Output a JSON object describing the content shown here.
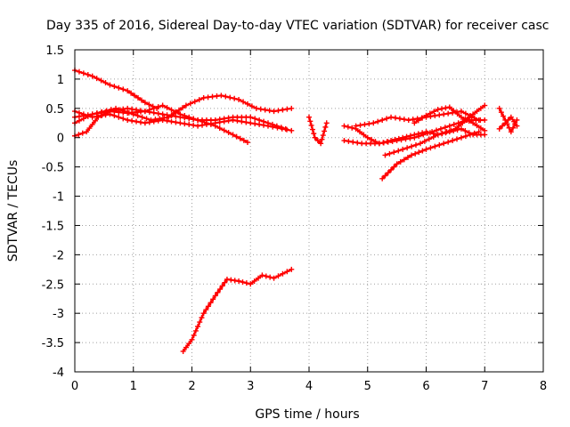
{
  "chart_data": {
    "type": "scatter",
    "title": "Day 335 of 2016, Sidereal Day-to-day VTEC variation (SDTVAR) for receiver casc",
    "xlabel": "GPS time / hours",
    "ylabel": "SDTVAR / TECUs",
    "xlim": [
      0,
      8
    ],
    "ylim": [
      -4,
      1.5
    ],
    "x_ticks": [
      0,
      1,
      2,
      3,
      4,
      5,
      6,
      7,
      8
    ],
    "x_tick_labels": [
      "0",
      "1",
      "2",
      "3",
      "4",
      "5",
      "6",
      "7",
      "8"
    ],
    "y_ticks": [
      1.5,
      1,
      0.5,
      0,
      -0.5,
      -1,
      -1.5,
      -2,
      -2.5,
      -3,
      -3.5,
      -4
    ],
    "y_tick_labels": [
      "1.5",
      "1",
      "0.5",
      "0",
      "-0.5",
      "-1",
      "-1.5",
      "-2",
      "-2.5",
      "-3",
      "-3.5",
      "-4"
    ],
    "grid": true,
    "marker_color": "#ff0000",
    "series": [
      {
        "name": "s1",
        "x": [
          0,
          0.3,
          0.6,
          0.9,
          1.2,
          1.4
        ],
        "y": [
          1.15,
          1.05,
          0.9,
          0.8,
          0.6,
          0.5
        ]
      },
      {
        "name": "s2",
        "x": [
          0,
          0.3,
          0.6,
          0.9,
          1.2,
          1.5,
          1.8,
          2.1,
          2.4,
          2.7,
          3.0,
          3.3,
          3.7
        ],
        "y": [
          0.45,
          0.35,
          0.4,
          0.3,
          0.25,
          0.3,
          0.25,
          0.2,
          0.25,
          0.3,
          0.25,
          0.2,
          0.12
        ]
      },
      {
        "name": "s3",
        "x": [
          0,
          0.3,
          0.7,
          1.0,
          1.3,
          1.6,
          1.9,
          2.2,
          2.5,
          2.8,
          3.1,
          3.4,
          3.7
        ],
        "y": [
          0.25,
          0.4,
          0.5,
          0.4,
          0.3,
          0.35,
          0.55,
          0.68,
          0.72,
          0.65,
          0.5,
          0.45,
          0.5
        ]
      },
      {
        "name": "s4",
        "x": [
          0,
          0.2,
          0.4,
          0.6,
          0.9,
          1.2,
          1.5,
          1.8,
          2.1,
          2.4,
          2.7,
          2.95
        ],
        "y": [
          0.03,
          0.1,
          0.35,
          0.45,
          0.5,
          0.45,
          0.4,
          0.35,
          0.3,
          0.2,
          0.05,
          -0.08
        ]
      },
      {
        "name": "s5",
        "x": [
          0,
          0.3,
          0.6,
          0.9,
          1.2,
          1.5,
          1.8,
          2.1,
          2.4,
          2.7,
          3.0,
          3.3,
          3.6
        ],
        "y": [
          0.35,
          0.4,
          0.45,
          0.42,
          0.45,
          0.55,
          0.4,
          0.3,
          0.3,
          0.35,
          0.35,
          0.25,
          0.15
        ]
      },
      {
        "name": "s6",
        "x": [
          1.85,
          2.0,
          2.2,
          2.4,
          2.6,
          2.8,
          3.0,
          3.2,
          3.4,
          3.7
        ],
        "y": [
          -3.65,
          -3.45,
          -3.0,
          -2.7,
          -2.42,
          -2.45,
          -2.5,
          -2.35,
          -2.4,
          -2.25
        ]
      },
      {
        "name": "s7",
        "x": [
          4.0,
          4.1,
          4.2,
          4.3
        ],
        "y": [
          0.35,
          0.0,
          -0.1,
          0.25
        ]
      },
      {
        "name": "s8",
        "x": [
          4.6,
          4.8,
          5.0,
          5.2,
          5.4,
          5.6,
          5.8,
          6.0,
          6.2,
          6.4,
          6.6,
          6.8,
          7.0
        ],
        "y": [
          0.2,
          0.15,
          0.0,
          -0.1,
          -0.05,
          0.0,
          0.05,
          0.1,
          0.05,
          0.1,
          0.15,
          0.05,
          0.05
        ]
      },
      {
        "name": "s9",
        "x": [
          4.6,
          4.9,
          5.2,
          5.5,
          5.8,
          6.1,
          6.4,
          6.7,
          7.0
        ],
        "y": [
          -0.05,
          -0.1,
          -0.1,
          -0.05,
          0.0,
          0.1,
          0.2,
          0.3,
          0.3
        ]
      },
      {
        "name": "s10",
        "x": [
          5.25,
          5.5,
          5.75,
          6.0,
          6.3,
          6.6,
          6.9
        ],
        "y": [
          -0.7,
          -0.45,
          -0.3,
          -0.2,
          -0.1,
          0.0,
          0.1
        ]
      },
      {
        "name": "s11",
        "x": [
          5.3,
          5.6,
          5.9,
          6.2,
          6.5,
          6.8,
          7.0
        ],
        "y": [
          -0.3,
          -0.2,
          -0.1,
          0.05,
          0.15,
          0.4,
          0.55
        ]
      },
      {
        "name": "s12",
        "x": [
          4.8,
          5.1,
          5.4,
          5.7,
          6.0,
          6.3,
          6.6,
          6.9
        ],
        "y": [
          0.2,
          0.25,
          0.35,
          0.3,
          0.35,
          0.4,
          0.45,
          0.3
        ]
      },
      {
        "name": "s13",
        "x": [
          5.8,
          6.0,
          6.2,
          6.4,
          6.6,
          6.8,
          7.0
        ],
        "y": [
          0.25,
          0.38,
          0.48,
          0.52,
          0.35,
          0.25,
          0.12
        ]
      },
      {
        "name": "s14",
        "x": [
          7.25,
          7.35,
          7.45,
          7.55
        ],
        "y": [
          0.5,
          0.3,
          0.1,
          0.3
        ]
      },
      {
        "name": "s15",
        "x": [
          7.25,
          7.35,
          7.45,
          7.55
        ],
        "y": [
          0.15,
          0.25,
          0.35,
          0.2
        ]
      }
    ]
  }
}
